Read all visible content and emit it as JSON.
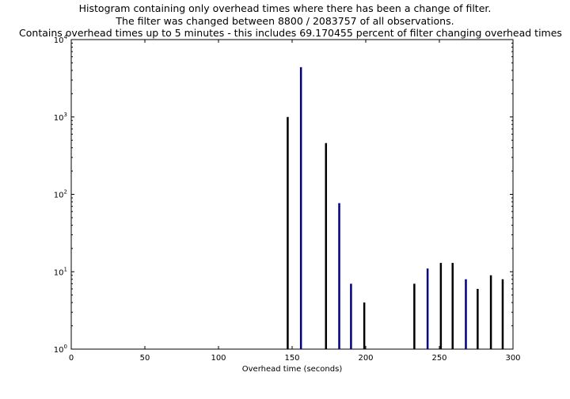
{
  "chart_data": {
    "type": "bar",
    "title_lines": [
      "Histogram containing only overhead times where there has been a change of filter.",
      "The filter was changed between 8800 / 2083757 of all observations.",
      "Contains overhead times up to 5 minutes - this includes 69.170455 percent of filter changing overhead times"
    ],
    "xlabel": "Overhead time (seconds)",
    "ylabel": "",
    "xlim": [
      0,
      300
    ],
    "ylim": [
      1,
      10000
    ],
    "yscale": "log",
    "grid": false,
    "x_ticks": [
      0,
      50,
      100,
      150,
      200,
      250,
      300
    ],
    "y_ticks": [
      {
        "base": "10",
        "exp": "0"
      },
      {
        "base": "10",
        "exp": "1"
      },
      {
        "base": "10",
        "exp": "2"
      },
      {
        "base": "10",
        "exp": "3"
      },
      {
        "base": "10",
        "exp": "4"
      }
    ],
    "bars": [
      {
        "x": 147,
        "value": 1000,
        "color": "#000000"
      },
      {
        "x": 156,
        "value": 4400,
        "color": "#000080"
      },
      {
        "x": 173,
        "value": 460,
        "color": "#000000"
      },
      {
        "x": 182,
        "value": 77,
        "color": "#000080"
      },
      {
        "x": 190,
        "value": 7,
        "color": "#000080"
      },
      {
        "x": 199,
        "value": 4,
        "color": "#000000"
      },
      {
        "x": 233,
        "value": 7,
        "color": "#000000"
      },
      {
        "x": 242,
        "value": 11,
        "color": "#000080"
      },
      {
        "x": 251,
        "value": 13,
        "color": "#000000"
      },
      {
        "x": 259,
        "value": 13,
        "color": "#000000"
      },
      {
        "x": 268,
        "value": 8,
        "color": "#000080"
      },
      {
        "x": 276,
        "value": 6,
        "color": "#000000"
      },
      {
        "x": 285,
        "value": 9,
        "color": "#000000"
      },
      {
        "x": 293,
        "value": 8,
        "color": "#000000"
      }
    ]
  }
}
